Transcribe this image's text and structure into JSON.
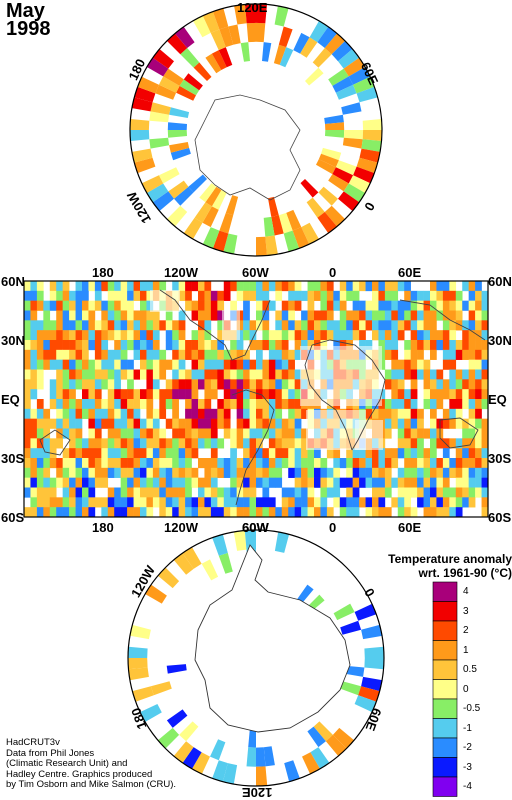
{
  "title": {
    "month": "May",
    "year": "1998"
  },
  "north_polar": {
    "labels": {
      "top": "120E",
      "right": "60E",
      "left": "180",
      "bottomleft": "120W",
      "bottomright": "0"
    }
  },
  "world_map": {
    "lon_labels": [
      "180",
      "120W",
      "60W",
      "0",
      "60E"
    ],
    "lat_labels_left": [
      "60N",
      "30N",
      "EQ",
      "30S",
      "60S"
    ],
    "lat_labels_right": [
      "60N",
      "30N",
      "EQ",
      "30S",
      "60S"
    ]
  },
  "south_polar": {
    "labels": {
      "topleft": "120W",
      "top": "60W",
      "right": "0",
      "left": "180",
      "bottomright": "60E",
      "bottom": "120E"
    }
  },
  "legend": {
    "title_line1": "Temperature anomaly",
    "title_line2": "wrt. 1961-90  (°C)",
    "bins": [
      {
        "label": "4",
        "color": "#A8007A"
      },
      {
        "label": "3",
        "color": "#F20000"
      },
      {
        "label": "2",
        "color": "#FF4A00"
      },
      {
        "label": "1",
        "color": "#FF9A1A"
      },
      {
        "label": "0.5",
        "color": "#FFC43A"
      },
      {
        "label": "0",
        "color": "#FFFF88"
      },
      {
        "label": "-0.5",
        "color": "#88EE66"
      },
      {
        "label": "-1",
        "color": "#55CCEE"
      },
      {
        "label": "-2",
        "color": "#2A8CFF"
      },
      {
        "label": "-3",
        "color": "#0A1AFF"
      },
      {
        "label": "-4",
        "color": "#8000F0"
      }
    ]
  },
  "credit": {
    "line1": "HadCRUT3v",
    "line2": "Data from Phil Jones",
    "line3": "(Climatic Research Unit) and",
    "line4": "Hadley Centre.  Graphics produced",
    "line5": "by Tim Osborn and Mike Salmon (CRU)."
  }
}
